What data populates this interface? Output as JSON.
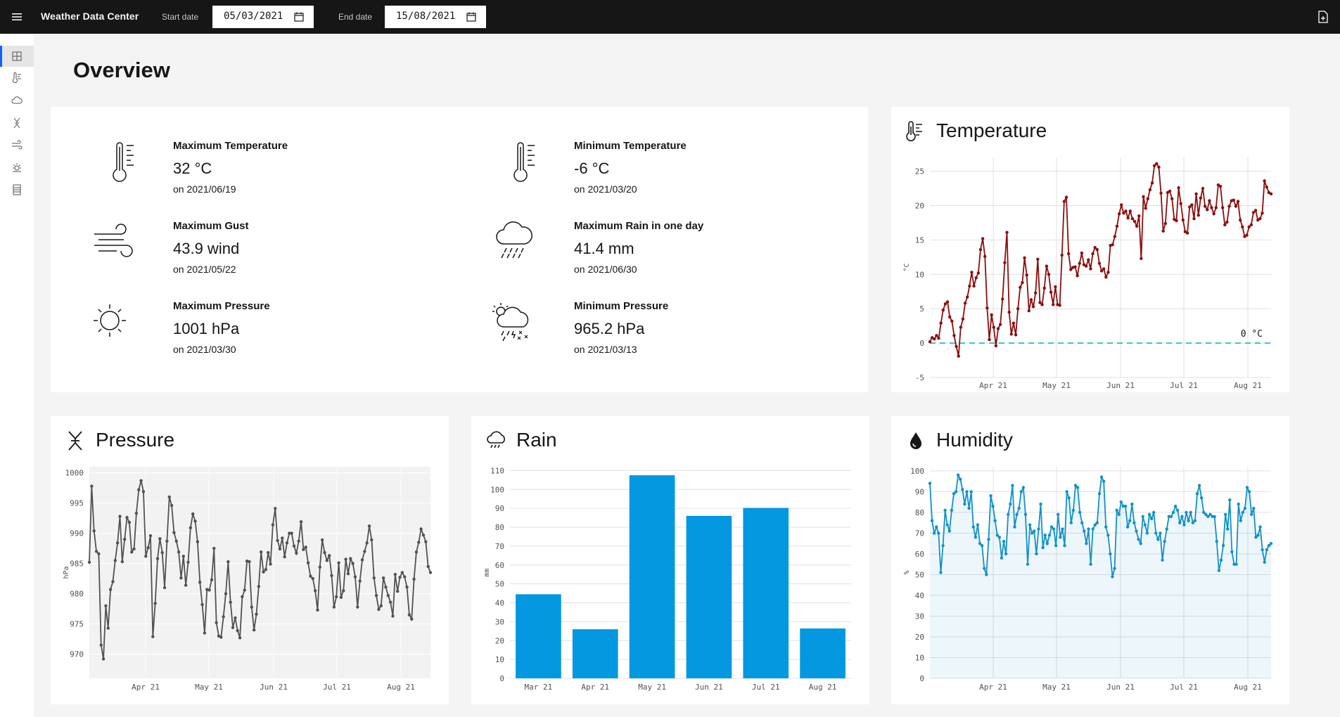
{
  "header": {
    "title": "Weather Data Center",
    "start_label": "Start date",
    "start_value": "05/03/2021",
    "end_label": "End date",
    "end_value": "15/08/2021"
  },
  "nav": [
    "overview-icon",
    "temperature-icon",
    "rain-icon",
    "pressure-icon",
    "wind-icon",
    "sun-icon",
    "table-icon"
  ],
  "page": {
    "title": "Overview"
  },
  "stats": [
    {
      "label": "Maximum Temperature",
      "value": "32 °C",
      "date": "on 2021/06/19",
      "icon": "thermometer-icon"
    },
    {
      "label": "Minimum Temperature",
      "value": "-6 °C",
      "date": "on 2021/03/20",
      "icon": "thermometer-icon"
    },
    {
      "label": "Maximum Gust",
      "value": "43.9 wind",
      "date": "on 2021/05/22",
      "icon": "wind-icon"
    },
    {
      "label": "Maximum Rain in one day",
      "value": "41.4 mm",
      "date": "on 2021/06/30",
      "icon": "rain-cloud-icon"
    },
    {
      "label": "Maximum Pressure",
      "value": "1001 hPa",
      "date": "on 2021/03/30",
      "icon": "sun-icon"
    },
    {
      "label": "Minimum Pressure",
      "value": "965.2 hPa",
      "date": "on 2021/03/13",
      "icon": "storm-cloud-icon"
    }
  ],
  "cards": {
    "temperature": "Temperature",
    "pressure": "Pressure",
    "rain": "Rain",
    "humidity": "Humidity"
  },
  "colors": {
    "temperature": "#8a0f0f",
    "pressure": "#525252",
    "rain": "#0398e0",
    "humidity": "#1192c6",
    "reference": "#08bdba"
  },
  "chart_data": [
    {
      "id": "temperature",
      "type": "line",
      "ylabel": "°C",
      "ylim": [
        -5,
        27
      ],
      "yticks": [
        -5,
        0,
        5,
        10,
        15,
        20,
        25
      ],
      "xticks": [
        "Apr 21",
        "May 21",
        "Jun 21",
        "Jul 21",
        "Aug 21"
      ],
      "reference_line": {
        "value": 0,
        "label": "0 °C"
      },
      "x_start": "2021-03-05",
      "x_end": "2021-08-15",
      "values": [
        0.2,
        0.8,
        0.6,
        1.1,
        0.7,
        2.9,
        4.8,
        5.7,
        6.0,
        3.8,
        3.2,
        1.1,
        -0.5,
        -1.9,
        2.3,
        3.5,
        5.8,
        6.7,
        8.3,
        10.3,
        8.3,
        9.5,
        10.2,
        13.6,
        15.2,
        12.6,
        5.1,
        0.5,
        4.1,
        2.3,
        -0.4,
        2.1,
        2.7,
        6.4,
        11.7,
        16.1,
        4.5,
        1.3,
        2.9,
        1.2,
        5.0,
        8.1,
        8.8,
        12.4,
        9.9,
        4.7,
        6.3,
        5.3,
        7.3,
        12.2,
        5.9,
        5.6,
        8.0,
        11.2,
        10.0,
        7.4,
        5.6,
        8.2,
        5.6,
        5.5,
        12.8,
        20.6,
        21.2,
        13.0,
        10.7,
        11.0,
        11.1,
        9.8,
        11.6,
        13.1,
        11.4,
        11.2,
        12.1,
        10.8,
        13.0,
        13.9,
        13.6,
        11.6,
        10.5,
        10.8,
        9.6,
        10.3,
        14.2,
        14.3,
        15.5,
        17.0,
        18.8,
        20.1,
        18.9,
        19.2,
        18.2,
        19.2,
        18.1,
        17.7,
        17.0,
        18.5,
        12.3,
        21.3,
        19.6,
        21.0,
        22.3,
        23.3,
        25.8,
        26.1,
        25.6,
        21.8,
        16.3,
        17.4,
        21.9,
        22.1,
        21.0,
        18.0,
        17.8,
        22.6,
        20.3,
        17.9,
        16.2,
        16.0,
        19.8,
        20.1,
        18.1,
        21.7,
        18.6,
        21.1,
        22.5,
        19.9,
        19.4,
        20.7,
        19.7,
        18.8,
        19.7,
        23.0,
        22.8,
        19.7,
        17.2,
        17.6,
        19.9,
        20.7,
        20.8,
        19.9,
        20.6,
        17.9,
        16.9,
        15.5,
        15.7,
        16.9,
        17.2,
        19.0,
        19.3,
        17.9,
        18.1,
        18.9,
        23.6,
        22.7,
        21.9,
        21.7
      ]
    },
    {
      "id": "pressure",
      "type": "line",
      "ylabel": "hPa",
      "ylim": [
        966,
        1001
      ],
      "yticks": [
        970,
        975,
        980,
        985,
        990,
        995,
        1000
      ],
      "xticks": [
        "Apr 21",
        "May 21",
        "Jun 21",
        "Jul 21",
        "Aug 21"
      ],
      "x_start": "2021-03-05",
      "x_end": "2021-08-15",
      "values": [
        985.2,
        997.8,
        990.4,
        987.0,
        986.6,
        971.5,
        969.2,
        978.0,
        974.3,
        980.7,
        982.0,
        985.5,
        988.4,
        992.8,
        985.3,
        989.0,
        992.6,
        991.8,
        986.9,
        987.4,
        993.3,
        997.2,
        998.7,
        996.9,
        986.2,
        987.6,
        989.6,
        972.9,
        978.4,
        985.8,
        989.1,
        986.8,
        981.0,
        988.7,
        996.0,
        994.6,
        990.1,
        988.7,
        986.9,
        982.6,
        986.2,
        981.4,
        985.2,
        990.9,
        993.2,
        992.0,
        988.6,
        981.9,
        978.2,
        973.5,
        980.7,
        980.6,
        982.3,
        987.5,
        975.2,
        973.0,
        972.8,
        976.2,
        980.0,
        985.3,
        978.6,
        974.4,
        976.0,
        973.9,
        972.7,
        979.5,
        980.6,
        985.4,
        985.3,
        977.8,
        974.0,
        976.6,
        981.2,
        986.9,
        983.6,
        984.0,
        986.8,
        984.9,
        991.4,
        994.1,
        988.8,
        987.4,
        989.2,
        986.1,
        988.4,
        990.0,
        990.0,
        987.9,
        986.7,
        988.7,
        991.9,
        987.3,
        987.7,
        985.1,
        982.9,
        982.5,
        980.5,
        977.3,
        984.4,
        988.9,
        986.8,
        985.5,
        986.3,
        983.0,
        977.8,
        979.5,
        985.1,
        979.4,
        980.5,
        985.7,
        983.3,
        985.8,
        985.0,
        982.8,
        977.8,
        982.1,
        985.6,
        987.0,
        988.4,
        991.2,
        988.9,
        982.6,
        979.7,
        977.4,
        978.0,
        982.6,
        981.1,
        979.7,
        978.6,
        976.3,
        983.2,
        980.4,
        982.7,
        983.5,
        982.8,
        981.1,
        976.5,
        975.8,
        982.4,
        986.9,
        988.5,
        990.7,
        989.7,
        988.6,
        984.5,
        983.5
      ]
    },
    {
      "id": "rain",
      "type": "bar",
      "ylabel": "mm",
      "ylim": [
        0,
        112
      ],
      "yticks": [
        0,
        10,
        20,
        30,
        40,
        50,
        60,
        70,
        80,
        90,
        100,
        110
      ],
      "categories": [
        "Mar 21",
        "Apr 21",
        "May 21",
        "Jun 21",
        "Jul 21",
        "Aug 21"
      ],
      "values": [
        44.5,
        26,
        107.5,
        86,
        90.2,
        26.4
      ]
    },
    {
      "id": "humidity",
      "type": "area",
      "ylabel": "%",
      "ylim": [
        0,
        102
      ],
      "yticks": [
        0,
        10,
        20,
        30,
        40,
        50,
        60,
        70,
        80,
        90,
        100
      ],
      "xticks": [
        "Apr 21",
        "May 21",
        "Jun 21",
        "Jul 21",
        "Aug 21"
      ],
      "x_start": "2021-03-05",
      "x_end": "2021-08-15",
      "values": [
        94,
        76,
        70,
        73,
        70,
        51,
        64,
        81,
        74,
        71,
        81,
        89,
        90,
        98,
        96,
        91,
        84,
        90,
        82,
        90,
        73,
        68,
        74,
        65,
        64,
        53,
        50,
        67,
        88,
        83,
        76,
        69,
        68,
        58,
        66,
        60,
        79,
        84,
        93,
        73,
        79,
        82,
        90,
        92,
        79,
        55,
        74,
        70,
        71,
        60,
        72,
        84,
        63,
        69,
        65,
        69,
        73,
        72,
        64,
        79,
        68,
        72,
        64,
        90,
        87,
        75,
        81,
        93,
        92,
        80,
        75,
        71,
        65,
        72,
        55,
        72,
        74,
        75,
        89,
        97,
        95,
        73,
        69,
        60,
        49,
        53,
        81,
        79,
        85,
        83,
        83,
        73,
        76,
        84,
        75,
        71,
        67,
        65,
        78,
        74,
        70,
        79,
        77,
        80,
        70,
        67,
        70,
        57,
        66,
        72,
        78,
        78,
        80,
        83,
        81,
        75,
        78,
        74,
        80,
        76,
        80,
        75,
        76,
        89,
        93,
        87,
        80,
        79,
        78,
        79,
        78,
        78,
        66,
        52,
        57,
        64,
        79,
        72,
        86,
        61,
        55,
        55,
        84,
        76,
        80,
        82,
        92,
        90,
        79,
        82,
        68,
        69,
        73,
        62,
        56,
        62,
        64,
        65
      ]
    }
  ]
}
